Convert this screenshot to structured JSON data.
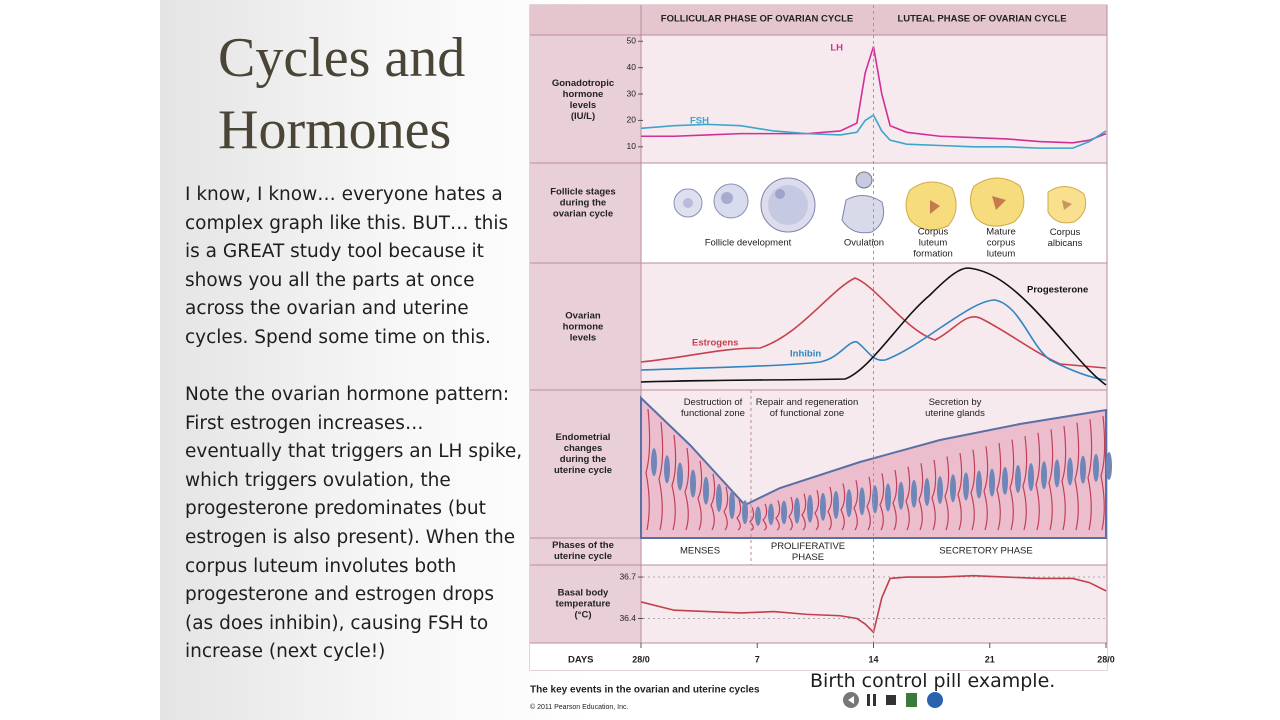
{
  "slide": {
    "title": "Cycles and Hormones",
    "paragraphs": [
      "I know, I know… everyone hates a complex graph like this.  BUT… this is a GREAT study tool because it shows you all the parts at once across the ovarian and uterine cycles.  Spend some time on this.",
      "Note the ovarian hormone pattern:  First estrogen increases… eventually that triggers an LH spike, which triggers ovulation, the progesterone predominates (but estrogen is also present).  When the corpus luteum involutes both progesterone and estrogen drops (as does inhibin), causing FSH to increase (next cycle!)"
    ],
    "note": "Birth control pill example."
  },
  "figure": {
    "phase_headers": [
      "FOLLICULAR PHASE OF OVARIAN CYCLE",
      "LUTEAL PHASE OF OVARIAN CYCLE"
    ],
    "row_labels": [
      [
        "Gonadotropic",
        "hormone",
        "levels",
        "(IU/L)"
      ],
      [
        "Follicle stages",
        "during the",
        "ovarian cycle"
      ],
      [
        "Ovarian",
        "hormone",
        "levels"
      ],
      [
        "Endometrial",
        "changes",
        "during the",
        "uterine cycle"
      ],
      [
        "Phases of the",
        "uterine cycle"
      ],
      [
        "Basal body",
        "temperature",
        "(°C)"
      ]
    ],
    "follicle_labels": [
      [
        "Follicle development"
      ],
      [
        "Ovulation"
      ],
      [
        "Corpus",
        "luteum",
        "formation"
      ],
      [
        "Mature",
        "corpus",
        "luteum"
      ],
      [
        "Corpus",
        "albicans"
      ]
    ],
    "ovarian_hormones": [
      "Estrogens",
      "Inhibin",
      "Progesterone"
    ],
    "endometrial_labels": [
      [
        "Destruction of",
        "functional zone"
      ],
      [
        "Repair and regeneration",
        "of functional zone"
      ],
      [
        "Secretion by",
        "uterine glands"
      ]
    ],
    "uterine_phases": [
      [
        "MENSES"
      ],
      [
        "PROLIFERATIVE",
        "PHASE"
      ],
      [
        "SECRETORY PHASE"
      ]
    ],
    "days_label": "DAYS",
    "caption": "The key events in the ovarian and uterine cycles",
    "copyright": "© 2011 Pearson Education, Inc."
  },
  "chart_data": [
    {
      "type": "line",
      "x": [
        0,
        2,
        4,
        6,
        8,
        10,
        12,
        13,
        13.5,
        14,
        14.5,
        15,
        16,
        18,
        20,
        22,
        24,
        26,
        27,
        28
      ],
      "series": [
        {
          "name": "LH",
          "color": "#d22f96",
          "values": [
            14,
            14,
            14.5,
            15,
            15,
            15,
            16,
            19,
            38,
            48,
            30,
            18,
            15.5,
            14,
            13.5,
            13,
            12,
            11.5,
            12.5,
            15
          ]
        },
        {
          "name": "FSH",
          "color": "#3aa6cc",
          "values": [
            17,
            18,
            18.5,
            18,
            16,
            15,
            14.5,
            15.5,
            20,
            22,
            16,
            12.5,
            11,
            10.5,
            10,
            10,
            9.5,
            9.5,
            12,
            16
          ]
        }
      ],
      "xlim": [
        0,
        28
      ],
      "ylim": [
        5,
        52
      ],
      "yticks": [
        10,
        20,
        30,
        40,
        50
      ]
    },
    {
      "type": "line",
      "x": [
        0,
        2,
        4,
        6,
        8,
        10,
        12,
        13,
        13.5,
        14,
        14.5,
        15,
        16,
        18,
        20,
        22,
        24,
        26,
        27,
        28
      ],
      "values": [
        36.52,
        36.46,
        36.45,
        36.44,
        36.45,
        36.43,
        36.42,
        36.4,
        36.36,
        36.3,
        36.55,
        36.69,
        36.7,
        36.7,
        36.71,
        36.7,
        36.69,
        36.69,
        36.66,
        36.6
      ],
      "color": "#c0404c",
      "xlim": [
        0,
        28
      ],
      "xticks": [
        {
          "value": 0,
          "label": "28/0"
        },
        7,
        14,
        21,
        {
          "value": 28,
          "label": "28/0"
        }
      ],
      "ylim": [
        36.23,
        36.78
      ],
      "yticks": [
        36.7,
        36.4
      ]
    }
  ]
}
